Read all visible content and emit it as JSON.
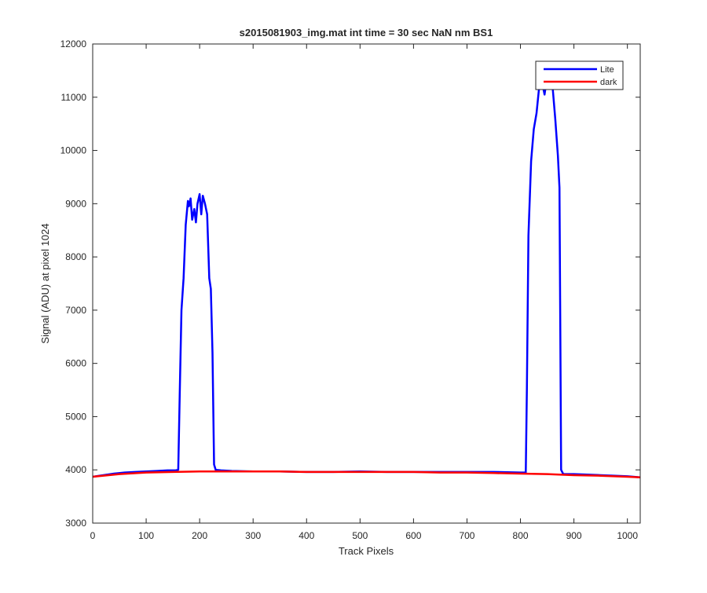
{
  "chart_data": {
    "type": "line",
    "title": "s2015081903_img.mat int time = 30 sec  NaN nm BS1",
    "xlabel": "Track Pixels",
    "ylabel": "Signal (ADU) at pixel 1024",
    "xlim": [
      0,
      1024
    ],
    "ylim": [
      3000,
      12000
    ],
    "xticks": [
      0,
      100,
      200,
      300,
      400,
      500,
      600,
      700,
      800,
      900,
      1000
    ],
    "yticks": [
      3000,
      4000,
      5000,
      6000,
      7000,
      8000,
      9000,
      10000,
      11000,
      12000
    ],
    "grid": false,
    "legend_position": "top-right",
    "series": [
      {
        "name": "Lite",
        "color": "#0000ff",
        "x": [
          0,
          20,
          40,
          60,
          80,
          100,
          120,
          140,
          155,
          160,
          163,
          166,
          170,
          174,
          178,
          180,
          183,
          186,
          190,
          193,
          196,
          200,
          203,
          206,
          210,
          214,
          218,
          221,
          224,
          227,
          230,
          240,
          260,
          300,
          350,
          400,
          450,
          500,
          550,
          600,
          650,
          700,
          750,
          800,
          810,
          812,
          815,
          820,
          825,
          830,
          835,
          840,
          845,
          850,
          855,
          860,
          865,
          870,
          873,
          876,
          880,
          900,
          950,
          1000,
          1024
        ],
        "y": [
          3870,
          3900,
          3930,
          3950,
          3960,
          3970,
          3980,
          3990,
          3990,
          4000,
          5500,
          7000,
          7600,
          8600,
          9050,
          8950,
          9100,
          8700,
          8900,
          8650,
          9000,
          9180,
          8800,
          9150,
          9000,
          8800,
          7600,
          7400,
          6200,
          4100,
          4000,
          3990,
          3980,
          3970,
          3970,
          3960,
          3960,
          3970,
          3960,
          3960,
          3960,
          3960,
          3960,
          3950,
          3950,
          5500,
          8400,
          9800,
          10400,
          10700,
          11200,
          11300,
          11050,
          11400,
          11300,
          11200,
          10600,
          9900,
          9300,
          4000,
          3920,
          3920,
          3900,
          3880,
          3860
        ]
      },
      {
        "name": "dark",
        "color": "#ff0000",
        "x": [
          0,
          50,
          100,
          150,
          200,
          250,
          300,
          350,
          400,
          450,
          500,
          550,
          600,
          650,
          700,
          750,
          800,
          850,
          900,
          950,
          1000,
          1024
        ],
        "y": [
          3870,
          3920,
          3950,
          3960,
          3970,
          3970,
          3970,
          3970,
          3960,
          3960,
          3960,
          3960,
          3960,
          3950,
          3950,
          3940,
          3930,
          3920,
          3900,
          3890,
          3870,
          3860
        ]
      }
    ]
  }
}
